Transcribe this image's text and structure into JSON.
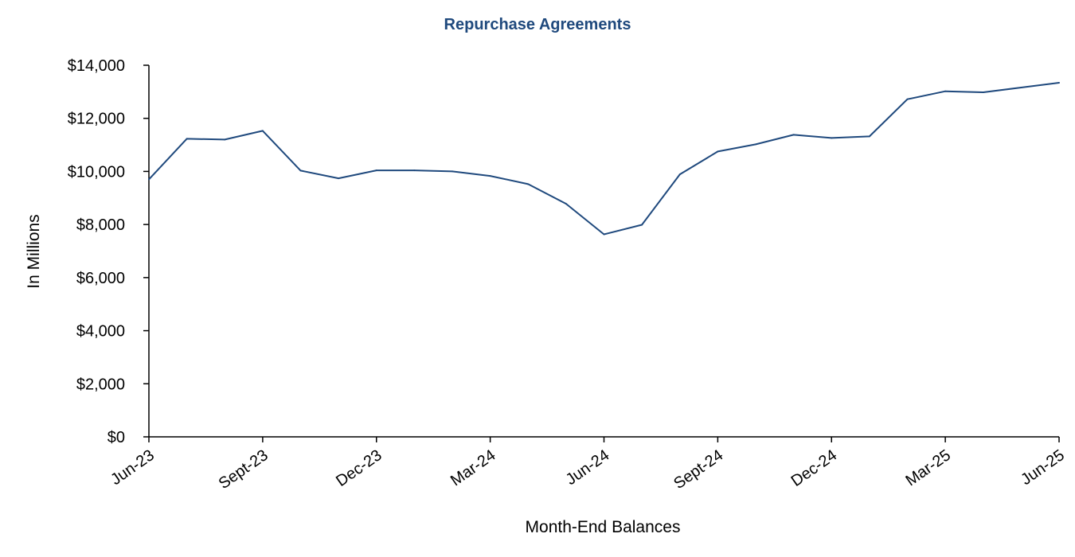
{
  "chart_data": {
    "type": "line",
    "title": "Repurchase Agreements",
    "xlabel": "Month-End Balances",
    "ylabel": "In Millions",
    "ylim": [
      0,
      14000
    ],
    "yticks": [
      0,
      2000,
      4000,
      6000,
      8000,
      10000,
      12000,
      14000
    ],
    "ytick_labels": [
      "$0",
      "$2,000",
      "$4,000",
      "$6,000",
      "$8,000",
      "$10,000",
      "$12,000",
      "$14,000"
    ],
    "xtick_labels": [
      "Jun-23",
      "Sept-23",
      "Dec-23",
      "Mar-24",
      "Jun-24",
      "Sept-24",
      "Dec-24",
      "Mar-25",
      "Jun-25"
    ],
    "categories": [
      "Jun-23",
      "Jul-23",
      "Aug-23",
      "Sep-23",
      "Oct-23",
      "Nov-23",
      "Dec-23",
      "Jan-24",
      "Feb-24",
      "Mar-24",
      "Apr-24",
      "May-24",
      "Jun-24",
      "Jul-24",
      "Aug-24",
      "Sep-24",
      "Oct-24",
      "Nov-24",
      "Dec-24",
      "Jan-25",
      "Feb-25",
      "Mar-25",
      "Apr-25",
      "May-25",
      "Jun-25"
    ],
    "series": [
      {
        "values": [
          9700,
          11230,
          11200,
          11530,
          10030,
          9740,
          10040,
          10040,
          10000,
          9830,
          9520,
          8780,
          7630,
          7990,
          9890,
          10750,
          11020,
          11380,
          11260,
          11320,
          12720,
          13020,
          12980,
          13160,
          13340
        ]
      }
    ],
    "grid": false,
    "legend": "none",
    "colors": {
      "title": "#1F497D",
      "line": "#1F497D",
      "axis": "#000000"
    }
  }
}
